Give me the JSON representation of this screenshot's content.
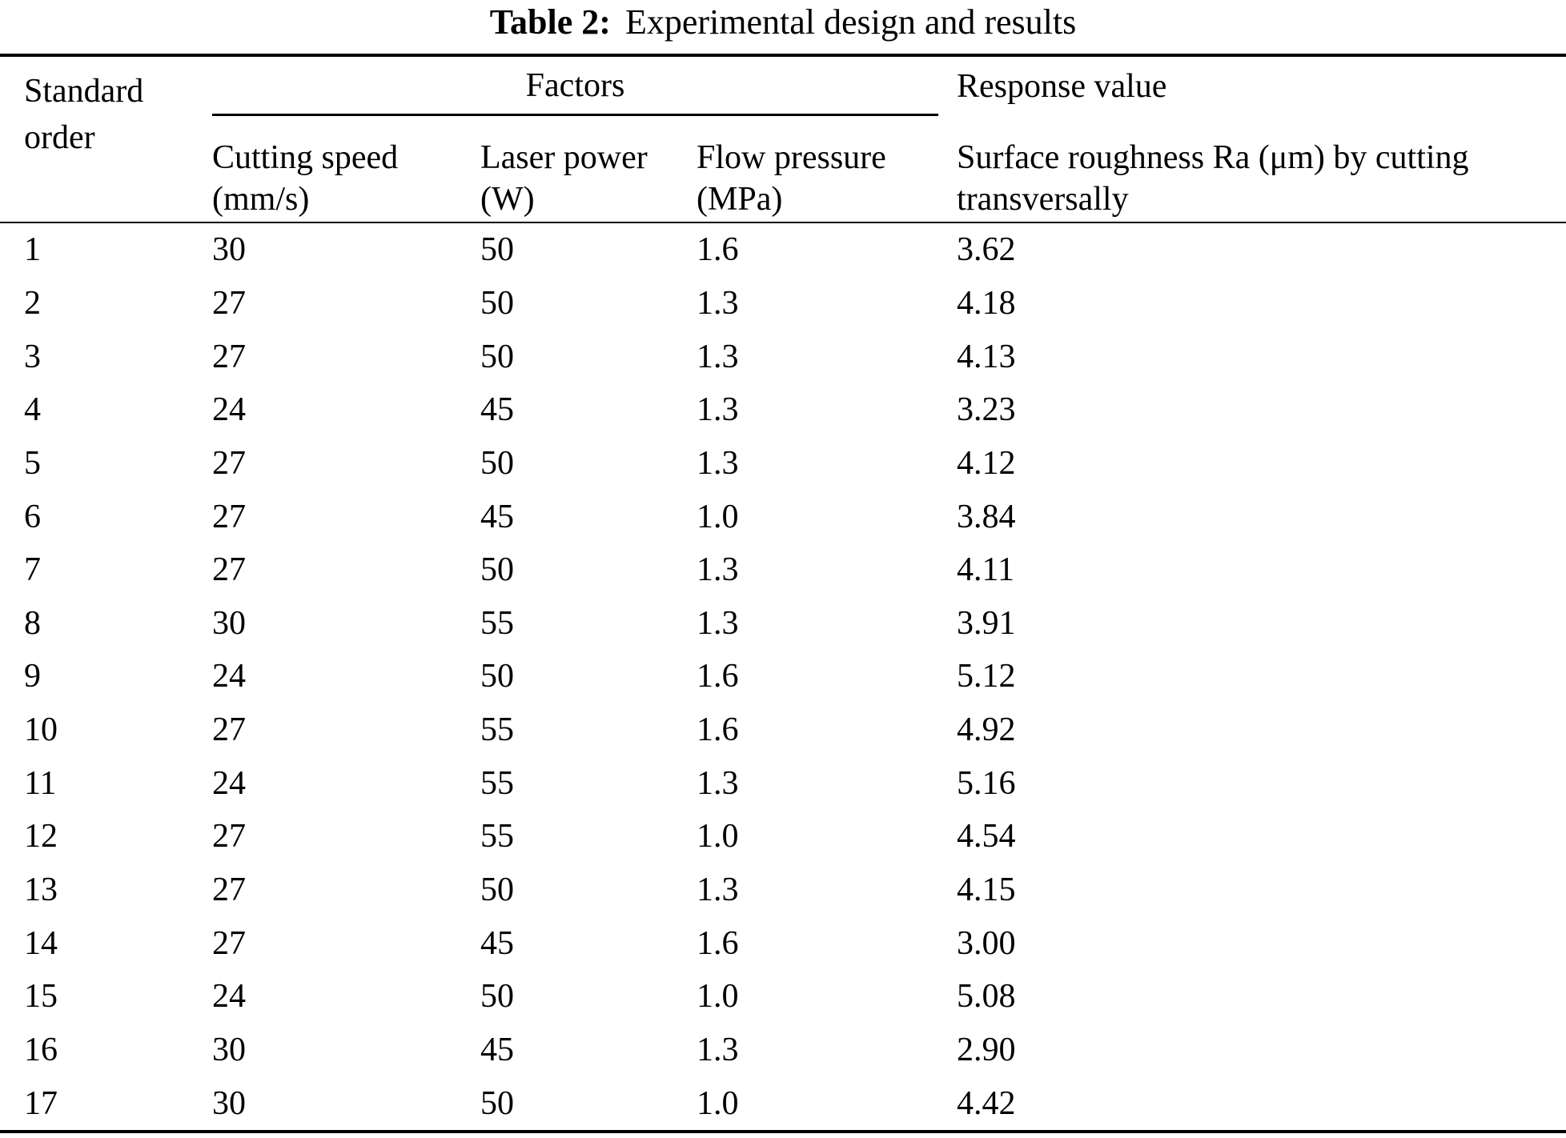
{
  "title": {
    "label": "Table 2:",
    "text": "Experimental design and results"
  },
  "table": {
    "columns": {
      "standard_order": {
        "line1": "Standard",
        "line2": "order"
      },
      "factors_group": "Factors",
      "cutting_speed": {
        "name": "Cutting speed",
        "unit": "(mm/s)"
      },
      "laser_power": {
        "name": "Laser power",
        "unit": "(W)"
      },
      "flow_pressure": {
        "name": "Flow pressure",
        "unit": "(MPa)"
      },
      "response_group": "Response value",
      "response_desc": {
        "line1": "Surface roughness Ra (μm) by cutting",
        "line2": "transversally"
      }
    },
    "rows": [
      [
        "1",
        "30",
        "50",
        "1.6",
        "3.62"
      ],
      [
        "2",
        "27",
        "50",
        "1.3",
        "4.18"
      ],
      [
        "3",
        "27",
        "50",
        "1.3",
        "4.13"
      ],
      [
        "4",
        "24",
        "45",
        "1.3",
        "3.23"
      ],
      [
        "5",
        "27",
        "50",
        "1.3",
        "4.12"
      ],
      [
        "6",
        "27",
        "45",
        "1.0",
        "3.84"
      ],
      [
        "7",
        "27",
        "50",
        "1.3",
        "4.11"
      ],
      [
        "8",
        "30",
        "55",
        "1.3",
        "3.91"
      ],
      [
        "9",
        "24",
        "50",
        "1.6",
        "5.12"
      ],
      [
        "10",
        "27",
        "55",
        "1.6",
        "4.92"
      ],
      [
        "11",
        "24",
        "55",
        "1.3",
        "5.16"
      ],
      [
        "12",
        "27",
        "55",
        "1.0",
        "4.54"
      ],
      [
        "13",
        "27",
        "50",
        "1.3",
        "4.15"
      ],
      [
        "14",
        "27",
        "45",
        "1.6",
        "3.00"
      ],
      [
        "15",
        "24",
        "50",
        "1.0",
        "5.08"
      ],
      [
        "16",
        "30",
        "45",
        "1.3",
        "2.90"
      ],
      [
        "17",
        "30",
        "50",
        "1.0",
        "4.42"
      ]
    ]
  }
}
